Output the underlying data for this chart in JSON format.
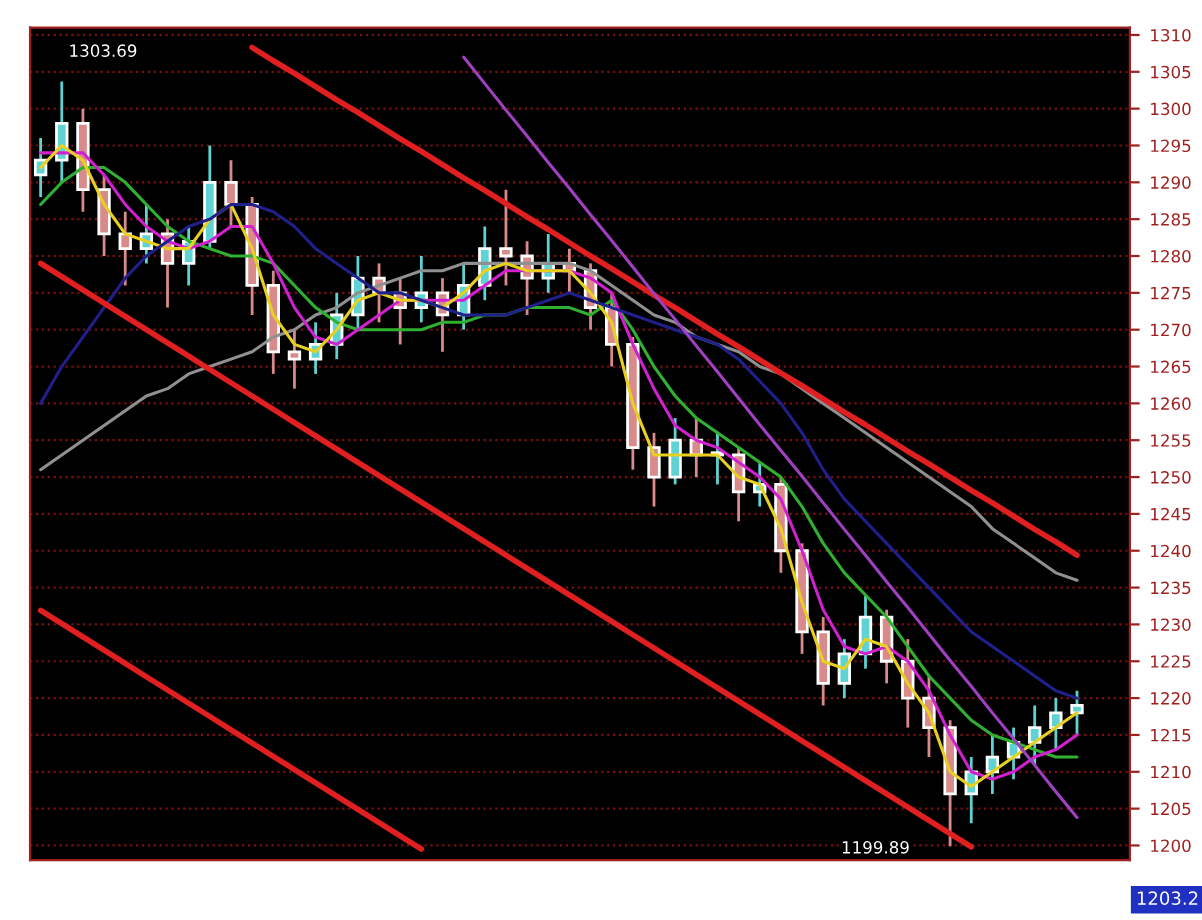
{
  "chart_data": {
    "type": "candlestick",
    "categories": [
      null,
      null,
      null,
      null,
      null,
      null,
      null,
      null,
      null,
      null,
      null,
      null,
      null,
      null,
      null,
      null,
      null,
      null,
      null,
      null,
      null,
      null,
      null,
      null,
      null,
      null,
      null,
      null,
      null,
      null,
      null,
      null,
      null,
      null,
      null,
      null,
      null,
      null,
      null,
      null,
      null,
      null,
      null,
      null,
      null,
      null,
      null,
      null,
      null,
      null
    ],
    "ohlc": [
      [
        1291,
        1296,
        1288,
        1293
      ],
      [
        1293,
        1303.69,
        1290,
        1298
      ],
      [
        1298,
        1300,
        1286,
        1289
      ],
      [
        1289,
        1291,
        1280,
        1283
      ],
      [
        1283,
        1286,
        1276,
        1281
      ],
      [
        1281,
        1287,
        1279,
        1283
      ],
      [
        1283,
        1285,
        1273,
        1279
      ],
      [
        1279,
        1284,
        1276,
        1282
      ],
      [
        1282,
        1295,
        1281,
        1290
      ],
      [
        1290,
        1293,
        1284,
        1287
      ],
      [
        1287,
        1288,
        1272,
        1276
      ],
      [
        1276,
        1278,
        1264,
        1267
      ],
      [
        1267,
        1270,
        1262,
        1266
      ],
      [
        1266,
        1271,
        1264,
        1268
      ],
      [
        1268,
        1275,
        1266,
        1272
      ],
      [
        1272,
        1280,
        1270,
        1277
      ],
      [
        1277,
        1279,
        1271,
        1275
      ],
      [
        1275,
        1277,
        1268,
        1273
      ],
      [
        1273,
        1280,
        1271,
        1275
      ],
      [
        1275,
        1277,
        1267,
        1272
      ],
      [
        1272,
        1279,
        1270,
        1276
      ],
      [
        1276,
        1284,
        1274,
        1281
      ],
      [
        1281,
        1289,
        1276,
        1280
      ],
      [
        1280,
        1282,
        1272,
        1277
      ],
      [
        1277,
        1283,
        1275,
        1279
      ],
      [
        1279,
        1281,
        1275,
        1278
      ],
      [
        1278,
        1279,
        1270,
        1273
      ],
      [
        1273,
        1275,
        1265,
        1268
      ],
      [
        1268,
        1269,
        1251,
        1254
      ],
      [
        1254,
        1256,
        1246,
        1250
      ],
      [
        1250,
        1258,
        1249,
        1255
      ],
      [
        1255,
        1258,
        1250,
        1253
      ],
      [
        1253,
        1256,
        1249,
        1253
      ],
      [
        1253,
        1254,
        1244,
        1248
      ],
      [
        1248,
        1252,
        1246,
        1249
      ],
      [
        1249,
        1250,
        1237,
        1240
      ],
      [
        1240,
        1241,
        1226,
        1229
      ],
      [
        1229,
        1231,
        1219,
        1222
      ],
      [
        1222,
        1228,
        1220,
        1226
      ],
      [
        1226,
        1234,
        1224,
        1231
      ],
      [
        1231,
        1232,
        1222,
        1225
      ],
      [
        1225,
        1228,
        1216,
        1220
      ],
      [
        1220,
        1223,
        1212,
        1216
      ],
      [
        1216,
        1217,
        1199.89,
        1207
      ],
      [
        1207,
        1212,
        1203,
        1210
      ],
      [
        1210,
        1215,
        1207,
        1212
      ],
      [
        1212,
        1216,
        1209,
        1214
      ],
      [
        1214,
        1219,
        1211,
        1216
      ],
      [
        1216,
        1220,
        1213,
        1218
      ],
      [
        1218,
        1221,
        1215,
        1219
      ]
    ],
    "colors": [
      "#5fd3d3",
      "#5fd3d3",
      "#d98a8a",
      "#d98a8a",
      "#d98a8a",
      "#5fd3d3",
      "#d98a8a",
      "#5fd3d3",
      "#5fd3d3",
      "#d98a8a",
      "#d98a8a",
      "#d98a8a",
      "#d98a8a",
      "#5fd3d3",
      "#5fd3d3",
      "#5fd3d3",
      "#d98a8a",
      "#d98a8a",
      "#5fd3d3",
      "#d98a8a",
      "#5fd3d3",
      "#5fd3d3",
      "#d98a8a",
      "#d98a8a",
      "#5fd3d3",
      "#d98a8a",
      "#d98a8a",
      "#d98a8a",
      "#d98a8a",
      "#d98a8a",
      "#5fd3d3",
      "#d98a8a",
      "#5fd3d3",
      "#d98a8a",
      "#5fd3d3",
      "#d98a8a",
      "#d98a8a",
      "#d98a8a",
      "#5fd3d3",
      "#5fd3d3",
      "#d98a8a",
      "#d98a8a",
      "#d98a8a",
      "#d98a8a",
      "#5fd3d3",
      "#5fd3d3",
      "#5fd3d3",
      "#5fd3d3",
      "#5fd3d3",
      "#5fd3d3"
    ],
    "series": [
      {
        "type": "line",
        "color": "#909090",
        "values": [
          1251,
          1253,
          1255,
          1257,
          1259,
          1261,
          1262,
          1264,
          1265,
          1266,
          1267,
          1269,
          1270,
          1272,
          1273,
          1275,
          1276,
          1277,
          1278,
          1278,
          1279,
          1279,
          1279,
          1279,
          1279,
          1279,
          1278,
          1276,
          1274,
          1272,
          1271,
          1269,
          1268,
          1267,
          1265,
          1264,
          1262,
          1260,
          1258,
          1256,
          1254,
          1252,
          1250,
          1248,
          1246,
          1243,
          1241,
          1239,
          1237,
          1236
        ]
      },
      {
        "type": "line",
        "color": "#30b030",
        "values": [
          1287,
          1290,
          1292,
          1292,
          1290,
          1287,
          1284,
          1282,
          1281,
          1280,
          1280,
          1279,
          1276,
          1273,
          1271,
          1270,
          1270,
          1270,
          1270,
          1271,
          1271,
          1272,
          1272,
          1273,
          1273,
          1273,
          1272,
          1274,
          1270,
          1265,
          1261,
          1258,
          1256,
          1254,
          1252,
          1250,
          1246,
          1241,
          1237,
          1234,
          1231,
          1227,
          1223,
          1220,
          1217,
          1215,
          1214,
          1213,
          1212,
          1212
        ]
      },
      {
        "type": "line",
        "color": "#d020d0",
        "values": [
          1294,
          1294,
          1294,
          1291,
          1287,
          1284,
          1282,
          1281,
          1282,
          1284,
          1284,
          1279,
          1273,
          1269,
          1268,
          1270,
          1272,
          1274,
          1274,
          1274,
          1274,
          1276,
          1278,
          1278,
          1278,
          1278,
          1277,
          1275,
          1268,
          1262,
          1257,
          1255,
          1254,
          1252,
          1250,
          1247,
          1240,
          1232,
          1227,
          1226,
          1227,
          1225,
          1221,
          1215,
          1210,
          1209,
          1210,
          1212,
          1213,
          1215
        ]
      },
      {
        "type": "line",
        "color": "#e8d020",
        "values": [
          1292,
          1295,
          1293,
          1287,
          1283,
          1282,
          1281,
          1281,
          1285,
          1287,
          1281,
          1272,
          1268,
          1267,
          1270,
          1274,
          1275,
          1274,
          1274,
          1273,
          1275,
          1278,
          1279,
          1278,
          1278,
          1278,
          1275,
          1271,
          1260,
          1253,
          1253,
          1253,
          1253,
          1250,
          1249,
          1243,
          1233,
          1225,
          1224,
          1228,
          1227,
          1222,
          1218,
          1210,
          1208,
          1210,
          1212,
          1214,
          1216,
          1218
        ]
      },
      {
        "type": "line",
        "color": "#20208c",
        "values": [
          1260,
          1265,
          1269,
          1273,
          1277,
          1280,
          1282,
          1284,
          1285,
          1287,
          1287,
          1286,
          1284,
          1281,
          1279,
          1277,
          1275,
          1275,
          1274,
          1273,
          1272,
          1272,
          1272,
          1273,
          1274,
          1275,
          1274,
          1273,
          1272,
          1271,
          1270,
          1269,
          1268,
          1266,
          1263,
          1260,
          1256,
          1251,
          1247,
          1244,
          1241,
          1238,
          1235,
          1232,
          1229,
          1227,
          1225,
          1223,
          1221,
          1220
        ]
      },
      {
        "type": "line",
        "color": "#e02020",
        "values": [
          null,
          null,
          null,
          null,
          null,
          null,
          null,
          null,
          null,
          null,
          1308.3,
          1306.5,
          1304.8,
          1303,
          1301.2,
          1299.5,
          1297.7,
          1295.9,
          1294.2,
          1292.4,
          1290.6,
          1288.9,
          1287.1,
          1285.3,
          1283.6,
          1281.8,
          1280,
          1278.3,
          1276.5,
          1274.7,
          1273,
          1271.2,
          1269.4,
          1267.7,
          1265.9,
          1264.1,
          1262.4,
          1260.6,
          1258.8,
          1257.1,
          1255.3,
          1253.5,
          1251.8,
          1250,
          1248.2,
          1246.5,
          1244.7,
          1242.9,
          1241.2,
          1239.4
        ]
      },
      {
        "type": "line",
        "color": "#e02020",
        "values": [
          1279,
          1277.2,
          1275.4,
          1273.6,
          1271.8,
          1270,
          1268.2,
          1266.4,
          1264.6,
          1262.8,
          1261,
          1259.2,
          1257.4,
          1255.6,
          1253.8,
          1252,
          1250.2,
          1248.4,
          1246.6,
          1244.8,
          1243,
          1241.2,
          1239.4,
          1237.6,
          1235.8,
          1234,
          1232.2,
          1230.4,
          1228.6,
          1226.8,
          1225,
          1223.2,
          1221.4,
          1219.6,
          1217.8,
          1216,
          1214.2,
          1212.4,
          1210.6,
          1208.8,
          1207,
          1205.2,
          1203.4,
          1201.6,
          1199.8,
          null,
          null,
          null,
          null,
          null
        ]
      },
      {
        "type": "line",
        "color": "#e02020",
        "values": [
          1231.9,
          1230.1,
          1228.3,
          1226.5,
          1224.7,
          1222.9,
          1221.1,
          1219.3,
          1217.5,
          1215.7,
          1213.9,
          1212.1,
          1210.3,
          1208.5,
          1206.7,
          1204.9,
          1203.1,
          1201.3,
          1199.5,
          null,
          null,
          null,
          null,
          null,
          null,
          null,
          null,
          null,
          null,
          null,
          null,
          null,
          null,
          null,
          null,
          null,
          null,
          null,
          null,
          null,
          null,
          null,
          null,
          null,
          null,
          null,
          null,
          null,
          null,
          null
        ]
      },
      {
        "type": "line",
        "color": "#a040c0",
        "values": [
          null,
          null,
          null,
          null,
          null,
          null,
          null,
          null,
          null,
          null,
          null,
          null,
          null,
          null,
          null,
          null,
          null,
          null,
          null,
          null,
          1307,
          1303.4,
          1299.8,
          1296.3,
          1292.7,
          1289.2,
          1285.6,
          1282.1,
          1278.5,
          1274.9,
          1271.4,
          1267.8,
          1264.3,
          1260.7,
          1257.1,
          1253.6,
          1250.1,
          1246.5,
          1242.9,
          1239.4,
          1235.8,
          1232.3,
          1228.7,
          1225.1,
          1221.6,
          1218,
          1214.5,
          1210.9,
          1207.3,
          1203.8
        ]
      }
    ],
    "ylim": [
      1198,
      1311
    ],
    "yticks": [
      1200,
      1205,
      1210,
      1215,
      1220,
      1225,
      1230,
      1235,
      1240,
      1245,
      1250,
      1255,
      1260,
      1265,
      1270,
      1275,
      1280,
      1285,
      1290,
      1295,
      1300,
      1305,
      1310
    ],
    "grid": "y",
    "tick_labels": "y",
    "annotations": [
      "1303.69",
      "1199.89",
      "1203.2"
    ]
  }
}
